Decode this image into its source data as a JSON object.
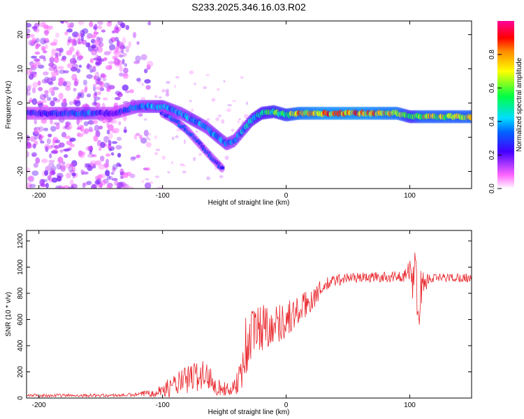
{
  "title": "S233.2025.346.16.03.R02",
  "chart_data": [
    {
      "type": "heatmap",
      "name": "spectrogram",
      "xlabel": "Height of straight line (km)",
      "ylabel": "Frequency (Hz)",
      "xlim": [
        -210,
        150
      ],
      "ylim": [
        -25,
        24
      ],
      "xticks": [
        -200,
        -100,
        0,
        100
      ],
      "yticks": [
        20,
        10,
        0,
        -10,
        -20
      ],
      "colorbar": {
        "label": "Normalized spectral amplitude",
        "range": [
          0,
          1
        ],
        "ticks": [
          0.0,
          0.2,
          0.4,
          0.6,
          0.8
        ],
        "colors": [
          "#ffffff",
          "#ff33ff",
          "#2200ff",
          "#00ccff",
          "#00ff00",
          "#ffff00",
          "#ff0000",
          "#ff00aa"
        ]
      },
      "main_track": {
        "x": [
          -210,
          -180,
          -160,
          -140,
          -120,
          -100,
          -85,
          -75,
          -65,
          -55,
          -48,
          -42,
          -35,
          -28,
          -20,
          -10,
          0,
          10,
          30,
          60,
          90,
          100,
          110,
          150
        ],
        "y": [
          -3,
          -3,
          -3,
          -3,
          -1,
          -1,
          -3,
          -5,
          -7,
          -10,
          -12,
          -11,
          -8,
          -5,
          -3,
          -2.5,
          -3.5,
          -3,
          -3,
          -3,
          -3,
          -4,
          -4,
          -4
        ],
        "amplitude": [
          0.25,
          0.3,
          0.35,
          0.2,
          0.35,
          0.4,
          0.35,
          0.4,
          0.35,
          0.4,
          0.35,
          0.35,
          0.4,
          0.45,
          0.5,
          0.55,
          0.6,
          0.75,
          0.8,
          0.8,
          0.75,
          0.55,
          0.7,
          0.7
        ]
      },
      "secondary_track": {
        "x": [
          -100,
          -90,
          -80,
          -70,
          -60,
          -52
        ],
        "y": [
          -3,
          -5,
          -8,
          -12,
          -16,
          -19
        ],
        "amplitude": [
          0.3,
          0.35,
          0.3,
          0.3,
          0.3,
          0.3
        ]
      }
    },
    {
      "type": "line",
      "name": "snr",
      "xlabel": "Height of straight line (km)",
      "ylabel": "SNR (10 * v/v)",
      "xlim": [
        -210,
        150
      ],
      "ylim": [
        0,
        1280
      ],
      "xticks": [
        -200,
        -100,
        0,
        100
      ],
      "yticks": [
        0,
        200,
        400,
        600,
        800,
        1000,
        1200
      ],
      "color": "#e8242a",
      "envelope": {
        "x": [
          -210,
          -140,
          -120,
          -100,
          -90,
          -80,
          -70,
          -60,
          -55,
          -45,
          -38,
          -32,
          -28,
          -20,
          -10,
          0,
          10,
          20,
          30,
          40,
          50,
          60,
          80,
          95,
          102,
          104,
          106,
          110,
          115,
          130,
          150
        ],
        "y": [
          20,
          20,
          25,
          60,
          100,
          140,
          180,
          150,
          80,
          60,
          150,
          400,
          500,
          550,
          560,
          600,
          660,
          750,
          850,
          900,
          920,
          920,
          925,
          930,
          930,
          1000,
          700,
          850,
          910,
          920,
          920
        ],
        "noise": [
          12,
          12,
          15,
          50,
          90,
          110,
          130,
          100,
          70,
          40,
          120,
          300,
          200,
          200,
          150,
          150,
          120,
          100,
          60,
          50,
          40,
          40,
          40,
          40,
          200,
          300,
          250,
          150,
          40,
          35,
          35
        ]
      }
    }
  ]
}
